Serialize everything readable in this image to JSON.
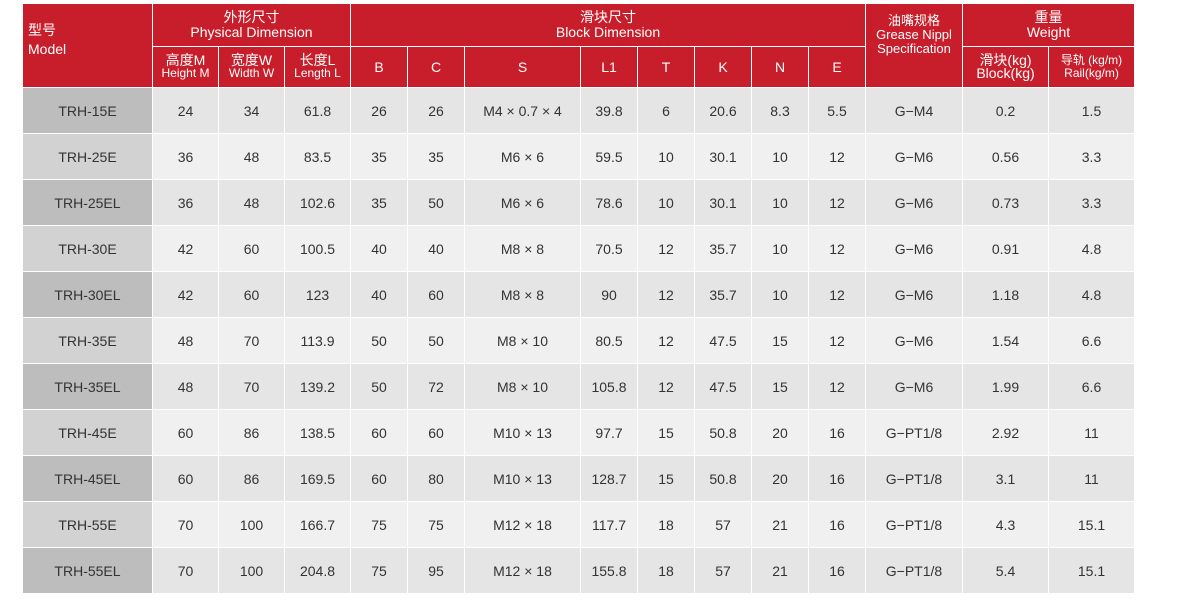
{
  "headers": {
    "model_cn": "型号",
    "model_en": "Model",
    "physical_cn": "外形尺寸",
    "physical_en": "Physical Dimension",
    "block_cn": "滑块尺寸",
    "block_en": "Block Dimension",
    "grease_cn": "油嘴规格",
    "grease_en1": "Grease Nippl",
    "grease_en2": "Specification",
    "weight_cn": "重量",
    "weight_en": "Weight",
    "height_cn": "高度M",
    "height_en": "Height M",
    "width_cn": "宽度W",
    "width_en": "Width W",
    "length_cn": "长度L",
    "length_en": "Length L",
    "B": "B",
    "C": "C",
    "S": "S",
    "L1": "L1",
    "T": "T",
    "K": "K",
    "N": "N",
    "E": "E",
    "block_wt_cn": "滑块(kg)",
    "block_wt_en": "Block(kg)",
    "rail_wt_cn": "导轨 (kg/m)",
    "rail_wt_en": "Rail(kg/m)"
  },
  "rows": [
    [
      "TRH-15E",
      "24",
      "34",
      "61.8",
      "26",
      "26",
      "M4 × 0.7 × 4",
      "39.8",
      "6",
      "20.6",
      "8.3",
      "5.5",
      "G−M4",
      "0.2",
      "1.5"
    ],
    [
      "TRH-25E",
      "36",
      "48",
      "83.5",
      "35",
      "35",
      "M6 × 6",
      "59.5",
      "10",
      "30.1",
      "10",
      "12",
      "G−M6",
      "0.56",
      "3.3"
    ],
    [
      "TRH-25EL",
      "36",
      "48",
      "102.6",
      "35",
      "50",
      "M6 × 6",
      "78.6",
      "10",
      "30.1",
      "10",
      "12",
      "G−M6",
      "0.73",
      "3.3"
    ],
    [
      "TRH-30E",
      "42",
      "60",
      "100.5",
      "40",
      "40",
      "M8 × 8",
      "70.5",
      "12",
      "35.7",
      "10",
      "12",
      "G−M6",
      "0.91",
      "4.8"
    ],
    [
      "TRH-30EL",
      "42",
      "60",
      "123",
      "40",
      "60",
      "M8 × 8",
      "90",
      "12",
      "35.7",
      "10",
      "12",
      "G−M6",
      "1.18",
      "4.8"
    ],
    [
      "TRH-35E",
      "48",
      "70",
      "113.9",
      "50",
      "50",
      "M8 × 10",
      "80.5",
      "12",
      "47.5",
      "15",
      "12",
      "G−M6",
      "1.54",
      "6.6"
    ],
    [
      "TRH-35EL",
      "48",
      "70",
      "139.2",
      "50",
      "72",
      "M8 × 10",
      "105.8",
      "12",
      "47.5",
      "15",
      "12",
      "G−M6",
      "1.99",
      "6.6"
    ],
    [
      "TRH-45E",
      "60",
      "86",
      "138.5",
      "60",
      "60",
      "M10 × 13",
      "97.7",
      "15",
      "50.8",
      "20",
      "16",
      "G−PT1/8",
      "2.92",
      "11"
    ],
    [
      "TRH-45EL",
      "60",
      "86",
      "169.5",
      "60",
      "80",
      "M10 × 13",
      "128.7",
      "15",
      "50.8",
      "20",
      "16",
      "G−PT1/8",
      "3.1",
      "11"
    ],
    [
      "TRH-55E",
      "70",
      "100",
      "166.7",
      "75",
      "75",
      "M12 × 18",
      "117.7",
      "18",
      "57",
      "21",
      "16",
      "G−PT1/8",
      "4.3",
      "15.1"
    ],
    [
      "TRH-55EL",
      "70",
      "100",
      "204.8",
      "75",
      "95",
      "M12 × 18",
      "155.8",
      "18",
      "57",
      "21",
      "16",
      "G−PT1/8",
      "5.4",
      "15.1"
    ]
  ]
}
